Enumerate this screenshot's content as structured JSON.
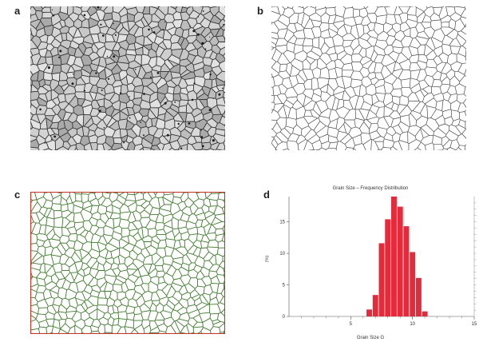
{
  "figure": {
    "panel_labels": [
      "a",
      "b",
      "c",
      "d"
    ]
  },
  "colors": {
    "micrograph_bg": "#c8c8c8",
    "boundary_dark": "#333333",
    "boundary_line": "#4a4a4a",
    "boundary_green": "#3f7a2e",
    "border_red": "#c0392b",
    "bar_red": "#e52a3c"
  },
  "chart_data": {
    "type": "bar",
    "title": "Grain Size – Frequency Distribution",
    "xlabel": "Grain Size G",
    "ylabel": "(%)",
    "xlim": [
      0,
      15
    ],
    "ylim": [
      0,
      19
    ],
    "x_ticks": [
      5,
      10,
      15
    ],
    "y_ticks": [
      0,
      5,
      10,
      15
    ],
    "bar_width": 0.5,
    "x": [
      6.5,
      7.0,
      7.5,
      8.0,
      8.5,
      9.0,
      9.5,
      10.0,
      10.5,
      11.0
    ],
    "values": [
      1.1,
      3.4,
      11.6,
      15.4,
      19.0,
      17.4,
      14.3,
      10.2,
      6.1,
      0.8
    ],
    "grid": false
  }
}
